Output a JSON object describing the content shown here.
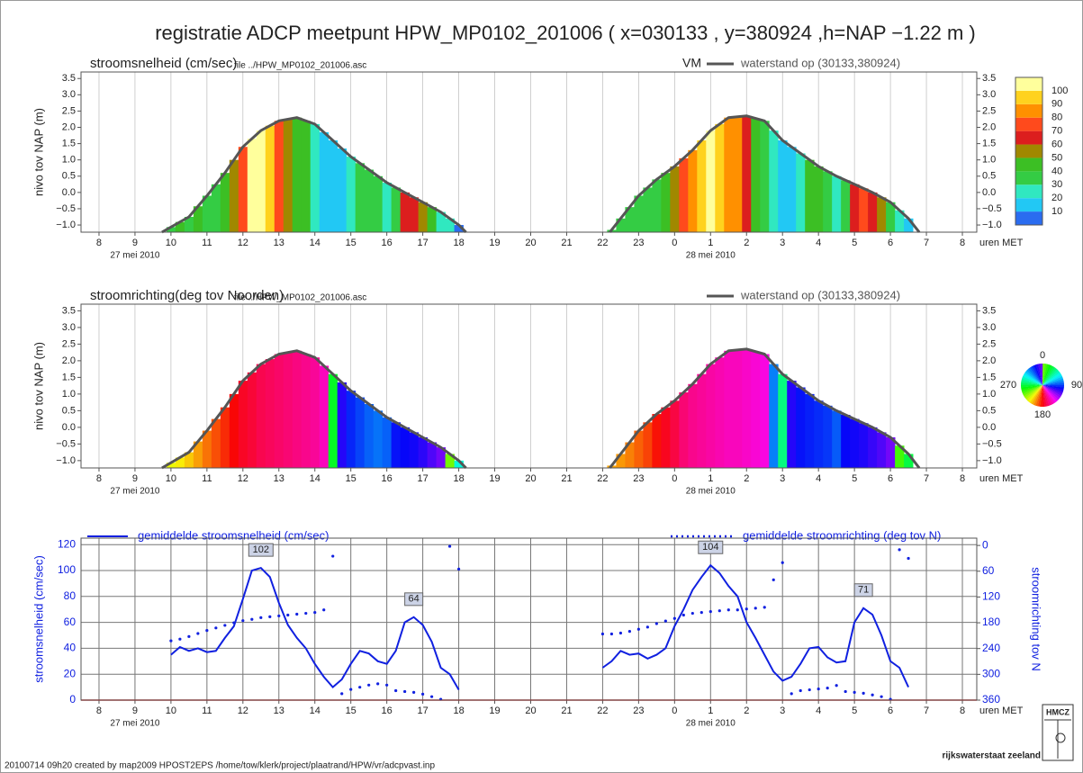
{
  "title": "registratie ADCP meetpunt HPW_MP0102_201006 ( x=030133 , y=380924 ,h=NAP −1.22 m )",
  "time_axis": {
    "xlim": [
      7.5,
      32.4
    ],
    "label": "uren MET",
    "dates": [
      "27 mei 2010",
      "28 mei 2010"
    ],
    "xticks": [
      8,
      9,
      10,
      11,
      12,
      13,
      14,
      15,
      16,
      17,
      18,
      19,
      20,
      21,
      22,
      23,
      {
        "value": 24,
        "label": "0"
      },
      {
        "value": 25,
        "label": "1"
      },
      {
        "value": 26,
        "label": "2"
      },
      {
        "value": 27,
        "label": "3"
      },
      {
        "value": 28,
        "label": "4"
      },
      {
        "value": 29,
        "label": "5"
      },
      {
        "value": 30,
        "label": "6"
      },
      {
        "value": 31,
        "label": "7"
      },
      {
        "value": 32,
        "label": "8"
      }
    ]
  },
  "chart_data": [
    {
      "type": "heatmap",
      "title": "stroomsnelheid (cm/sec)",
      "file": "file ../HPW_MP0102_201006.asc",
      "marker_label": "VM",
      "ylabel": "nivo tov NAP (m)",
      "ylim": [
        -1.22,
        3.7
      ],
      "yticks": [
        3.5,
        {
          "value": 3,
          "label": "3.0"
        },
        2.5,
        {
          "value": 2,
          "label": "2.0"
        },
        1.5,
        {
          "value": 1,
          "label": "1.0"
        },
        0.5,
        {
          "value": 0,
          "label": "0.0"
        },
        {
          "value": -0.5,
          "label": "−0.5"
        },
        {
          "value": -1,
          "label": "−1.0"
        }
      ],
      "colorbar": {
        "levels": [
          10,
          20,
          30,
          40,
          50,
          60,
          70,
          80,
          90,
          100
        ],
        "colors": [
          "#2a6cf0",
          "#22c8f4",
          "#30e8c0",
          "#34cc44",
          "#3cbf24",
          "#a08800",
          "#dc1e1e",
          "#ff4a1c",
          "#ff9000",
          "#ffd21e",
          "#ffff9c"
        ]
      },
      "series": [
        {
          "name": "waterstand op (30133,380924)",
          "color": "#555555",
          "x": [
            9.75,
            10.5,
            11,
            11.5,
            12,
            12.5,
            13,
            13.5,
            14,
            14.5,
            15,
            15.5,
            16,
            16.5,
            17,
            17.5,
            18,
            18.2,
            20,
            22.2,
            22.5,
            23,
            23.5,
            24,
            24.5,
            25,
            25.5,
            26,
            26.5,
            27,
            27.5,
            28,
            28.5,
            29,
            29.5,
            30,
            30.5,
            30.8
          ],
          "values": [
            -1.22,
            -0.75,
            -0.1,
            0.6,
            1.4,
            1.9,
            2.2,
            2.3,
            2.1,
            1.6,
            1.1,
            0.7,
            0.3,
            0.0,
            -0.3,
            -0.6,
            -1.0,
            -1.22,
            null,
            -1.22,
            -0.8,
            -0.1,
            0.4,
            0.8,
            1.3,
            1.9,
            2.3,
            2.35,
            2.2,
            1.6,
            1.2,
            0.8,
            0.5,
            0.25,
            0.0,
            -0.3,
            -0.8,
            -1.22
          ]
        }
      ]
    },
    {
      "type": "heatmap",
      "title": "stroomrichting(deg tov Noorden)",
      "file": "file ../HPW_MP0102_201006.asc",
      "ylabel": "nivo tov NAP (m)",
      "ylim": [
        -1.22,
        3.7
      ],
      "yticks": [
        3.5,
        {
          "value": 3,
          "label": "3.0"
        },
        2.5,
        {
          "value": 2,
          "label": "2.0"
        },
        1.5,
        {
          "value": 1,
          "label": "1.0"
        },
        0.5,
        {
          "value": 0,
          "label": "0.0"
        },
        {
          "value": -0.5,
          "label": "−0.5"
        },
        {
          "value": -1,
          "label": "−1.0"
        }
      ],
      "direction_wheel": [
        0,
        90,
        180,
        270
      ],
      "series": [
        {
          "name": "waterstand op (30133,380924)",
          "color": "#555555",
          "x": [
            9.75,
            10.5,
            11,
            11.5,
            12,
            12.5,
            13,
            13.5,
            14,
            14.5,
            15,
            15.5,
            16,
            16.5,
            17,
            17.5,
            18,
            18.2,
            20,
            22.2,
            22.5,
            23,
            23.5,
            24,
            24.5,
            25,
            25.5,
            26,
            26.5,
            27,
            27.5,
            28,
            28.5,
            29,
            29.5,
            30,
            30.5,
            30.8
          ],
          "values": [
            -1.22,
            -0.75,
            -0.1,
            0.6,
            1.4,
            1.9,
            2.2,
            2.3,
            2.1,
            1.6,
            1.1,
            0.7,
            0.3,
            0.0,
            -0.3,
            -0.6,
            -1.0,
            -1.22,
            null,
            -1.22,
            -0.8,
            -0.1,
            0.4,
            0.8,
            1.3,
            1.9,
            2.3,
            2.35,
            2.2,
            1.6,
            1.2,
            0.8,
            0.5,
            0.25,
            0.0,
            -0.3,
            -0.8,
            -1.22
          ]
        }
      ]
    },
    {
      "type": "line",
      "ylabel": "stroomsnelheid (cm/sec)",
      "y2label": "stroomrichting tov N",
      "ylim": [
        0,
        125
      ],
      "yticks": [
        0,
        20,
        40,
        60,
        80,
        100,
        120
      ],
      "y2lim": [
        360,
        -17
      ],
      "y2ticks": [
        0,
        60,
        120,
        180,
        240,
        300,
        360
      ],
      "grid": true,
      "x": [
        10,
        10.25,
        10.5,
        10.75,
        11,
        11.25,
        11.5,
        11.75,
        12,
        12.25,
        12.5,
        12.75,
        13,
        13.25,
        13.5,
        13.75,
        14,
        14.25,
        14.5,
        14.75,
        15,
        15.25,
        15.5,
        15.75,
        16,
        16.25,
        16.5,
        16.75,
        17,
        17.25,
        17.5,
        17.75,
        18,
        20,
        22,
        22.25,
        22.5,
        22.75,
        23,
        23.25,
        23.5,
        23.75,
        24,
        24.25,
        24.5,
        24.75,
        25,
        25.25,
        25.5,
        25.75,
        26,
        26.25,
        26.5,
        26.75,
        27,
        27.25,
        27.5,
        27.75,
        28,
        28.25,
        28.5,
        28.75,
        29,
        29.25,
        29.5,
        29.75,
        30,
        30.25,
        30.5
      ],
      "series": [
        {
          "name": "gemiddelde stroomsnelheid (cm/sec)",
          "color": "#1020e0",
          "values": [
            35,
            41,
            38,
            40,
            37,
            38,
            48,
            57,
            78,
            100,
            102,
            95,
            75,
            58,
            48,
            40,
            28,
            18,
            10,
            16,
            28,
            38,
            36,
            30,
            28,
            38,
            60,
            64,
            58,
            45,
            25,
            20,
            8,
            null,
            25,
            30,
            38,
            35,
            36,
            32,
            35,
            40,
            57,
            70,
            85,
            95,
            104,
            98,
            88,
            80,
            60,
            48,
            35,
            22,
            15,
            18,
            28,
            40,
            41,
            33,
            29,
            30,
            60,
            71,
            66,
            50,
            30,
            25,
            10
          ],
          "value_labels": [
            null,
            null,
            null,
            null,
            null,
            null,
            null,
            null,
            null,
            null,
            "102",
            null,
            null,
            null,
            null,
            null,
            null,
            null,
            null,
            null,
            null,
            null,
            null,
            null,
            null,
            null,
            null,
            "64",
            null,
            null,
            null,
            null,
            null,
            null,
            null,
            null,
            null,
            null,
            null,
            null,
            null,
            null,
            null,
            null,
            null,
            null,
            "104",
            null,
            null,
            null,
            null,
            null,
            null,
            null,
            null,
            null,
            null,
            null,
            null,
            null,
            null,
            null,
            null,
            "71",
            null,
            null,
            null,
            null,
            null
          ]
        },
        {
          "name": "gemiddelde stroomrichting (deg tov N)",
          "color": "#1020e0",
          "axis": "y2",
          "values": [
            222,
            218,
            212,
            205,
            198,
            192,
            186,
            180,
            175,
            172,
            168,
            166,
            164,
            162,
            160,
            158,
            156,
            150,
            25,
            345,
            335,
            330,
            325,
            322,
            325,
            338,
            340,
            342,
            346,
            352,
            358,
            2,
            55,
            null,
            206,
            206,
            204,
            200,
            195,
            190,
            182,
            176,
            170,
            162,
            158,
            156,
            154,
            152,
            150,
            150,
            148,
            146,
            144,
            80,
            40,
            345,
            338,
            336,
            334,
            332,
            326,
            340,
            342,
            344,
            348,
            352,
            358,
            10,
            30
          ]
        }
      ]
    }
  ],
  "footer": "20100714 09h20 created by map2009  HPOST2EPS  /home/tow/klerk/project/plaatrand/HPW/vr/adcpvast.inp",
  "logo": {
    "name": "HMCZ",
    "text": "rijkswaterstaat zeeland"
  }
}
